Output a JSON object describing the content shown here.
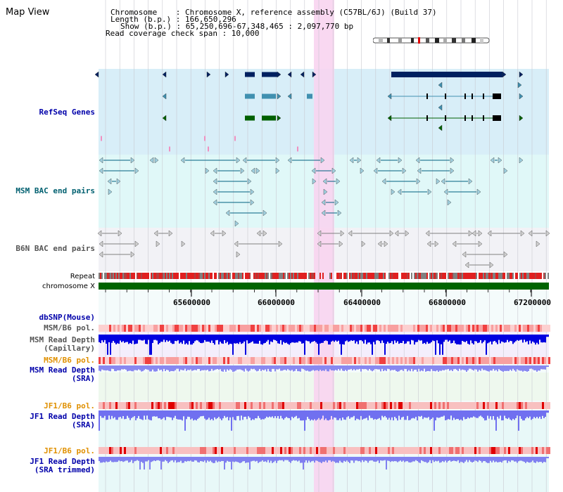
{
  "title": "Map View",
  "info": {
    "chromosome": "Chromosome    : Chromosome X, reference assembly (C57BL/6J) (Build 37)",
    "length": "Length (b.p.) : 166,650,296",
    "show": "Show (b.p.) : 65,250,696-67,348,465 : 2,097,770 bp",
    "coverage": "Read coverage check span : 10,000"
  },
  "tracks": {
    "refseq": "RefSeq Genes",
    "msm_bac": "MSM BAC end pairs",
    "b6n_bac": "B6N BAC end pairs",
    "repeat": "Repeat",
    "chromosome": "chromosome X",
    "dbsnp": "dbSNP(Mouse)",
    "msm_pol_1": "MSM/B6 pol.",
    "msm_depth_cap_1": "MSM Read Depth",
    "msm_depth_cap_2": "(Capillary)",
    "msm_pol_2": "MSM/B6 pol.",
    "msm_depth_sra_1": "MSM Read Depth",
    "msm_depth_sra_2": "(SRA)",
    "jf1_pol_1": "JF1/B6 pol.",
    "jf1_depth_sra_1": "JF1 Read Depth",
    "jf1_depth_sra_2": "(SRA)",
    "jf1_pol_2": "JF1/B6 pol.",
    "jf1_depth_trim_1": "JF1 Read Depth",
    "jf1_depth_trim_2": "(SRA trimmed)"
  },
  "axis_ticks": [
    "65600000",
    "66000000",
    "66400000",
    "66800000",
    "67200000"
  ],
  "colors": {
    "refseq_bg": "#d8eef8",
    "msm_bg": "#e0f8f8",
    "b6n_bg": "#f0f0f6",
    "highlight": "#f8d8f0",
    "chrom_bar": "#006400",
    "gene_dark": "#002060",
    "gene_mid": "#4090b0",
    "gene_green": "#006000",
    "bac_teal": "#006080",
    "bac_gray": "#808080"
  }
}
